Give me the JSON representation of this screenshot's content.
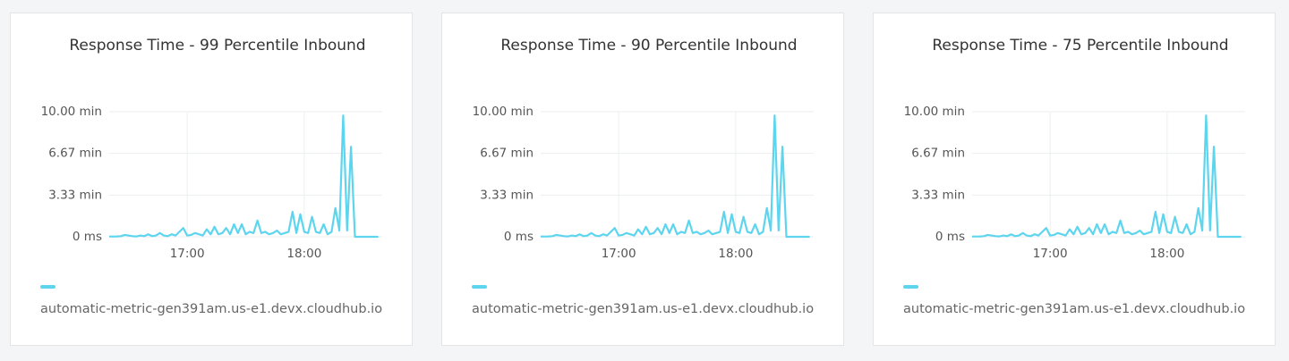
{
  "chart_data": [
    {
      "type": "line",
      "title": "Response Time - 99 Percentile Inbound",
      "x": [
        "16:20",
        "16:22",
        "16:24",
        "16:26",
        "16:28",
        "16:30",
        "16:32",
        "16:34",
        "16:36",
        "16:38",
        "16:40",
        "16:42",
        "16:44",
        "16:46",
        "16:48",
        "16:50",
        "16:52",
        "16:54",
        "16:56",
        "16:58",
        "17:00",
        "17:02",
        "17:04",
        "17:06",
        "17:08",
        "17:10",
        "17:12",
        "17:14",
        "17:16",
        "17:18",
        "17:20",
        "17:22",
        "17:24",
        "17:26",
        "17:28",
        "17:30",
        "17:32",
        "17:34",
        "17:36",
        "17:38",
        "17:40",
        "17:42",
        "17:44",
        "17:46",
        "17:48",
        "17:50",
        "17:52",
        "17:54",
        "17:56",
        "17:58",
        "18:00",
        "18:02",
        "18:04",
        "18:06",
        "18:08",
        "18:10",
        "18:12",
        "18:14",
        "18:16",
        "18:18",
        "18:20",
        "18:22",
        "18:24",
        "18:26",
        "18:28",
        "18:30",
        "18:32",
        "18:34",
        "18:36",
        "18:38"
      ],
      "series": [
        {
          "name": "automatic-metric-gen391am.us-e1.devx.cloudhub.io",
          "color": "#5dd5ee",
          "values": [
            0.02,
            0.02,
            0.03,
            0.05,
            0.15,
            0.1,
            0.05,
            0.03,
            0.1,
            0.05,
            0.2,
            0.05,
            0.1,
            0.3,
            0.1,
            0.05,
            0.2,
            0.1,
            0.4,
            0.7,
            0.1,
            0.15,
            0.3,
            0.2,
            0.1,
            0.6,
            0.2,
            0.8,
            0.2,
            0.3,
            0.7,
            0.2,
            1.0,
            0.3,
            1.0,
            0.2,
            0.4,
            0.3,
            1.3,
            0.3,
            0.4,
            0.2,
            0.3,
            0.5,
            0.2,
            0.3,
            0.4,
            2.0,
            0.3,
            1.8,
            0.4,
            0.3,
            1.6,
            0.4,
            0.3,
            1.0,
            0.2,
            0.4,
            2.3,
            0.5,
            9.7,
            0.5,
            7.2,
            0,
            0,
            0,
            0,
            0,
            0,
            0
          ]
        }
      ],
      "xlim": [
        "16:20",
        "18:40"
      ],
      "xticks": [
        "17:00",
        "18:00"
      ],
      "ylim": [
        0,
        10
      ],
      "yticks": [
        {
          "value": 0,
          "label": "0 ms"
        },
        {
          "value": 3.33,
          "label": "3.33 min"
        },
        {
          "value": 6.67,
          "label": "6.67 min"
        },
        {
          "value": 10,
          "label": "10.00 min"
        }
      ],
      "grid": true
    },
    {
      "type": "line",
      "title": "Response Time - 90 Percentile Inbound",
      "x": [
        "16:20",
        "16:22",
        "16:24",
        "16:26",
        "16:28",
        "16:30",
        "16:32",
        "16:34",
        "16:36",
        "16:38",
        "16:40",
        "16:42",
        "16:44",
        "16:46",
        "16:48",
        "16:50",
        "16:52",
        "16:54",
        "16:56",
        "16:58",
        "17:00",
        "17:02",
        "17:04",
        "17:06",
        "17:08",
        "17:10",
        "17:12",
        "17:14",
        "17:16",
        "17:18",
        "17:20",
        "17:22",
        "17:24",
        "17:26",
        "17:28",
        "17:30",
        "17:32",
        "17:34",
        "17:36",
        "17:38",
        "17:40",
        "17:42",
        "17:44",
        "17:46",
        "17:48",
        "17:50",
        "17:52",
        "17:54",
        "17:56",
        "17:58",
        "18:00",
        "18:02",
        "18:04",
        "18:06",
        "18:08",
        "18:10",
        "18:12",
        "18:14",
        "18:16",
        "18:18",
        "18:20",
        "18:22",
        "18:24",
        "18:26",
        "18:28",
        "18:30",
        "18:32",
        "18:34",
        "18:36",
        "18:38"
      ],
      "series": [
        {
          "name": "automatic-metric-gen391am.us-e1.devx.cloudhub.io",
          "color": "#5dd5ee",
          "values": [
            0.02,
            0.02,
            0.03,
            0.05,
            0.15,
            0.1,
            0.05,
            0.03,
            0.1,
            0.05,
            0.2,
            0.05,
            0.1,
            0.3,
            0.1,
            0.05,
            0.2,
            0.1,
            0.4,
            0.7,
            0.1,
            0.15,
            0.3,
            0.2,
            0.1,
            0.6,
            0.2,
            0.8,
            0.2,
            0.3,
            0.7,
            0.2,
            1.0,
            0.3,
            1.0,
            0.2,
            0.4,
            0.3,
            1.3,
            0.3,
            0.4,
            0.2,
            0.3,
            0.5,
            0.2,
            0.3,
            0.4,
            2.0,
            0.3,
            1.8,
            0.4,
            0.3,
            1.6,
            0.4,
            0.3,
            1.0,
            0.2,
            0.4,
            2.3,
            0.5,
            9.7,
            0.5,
            7.2,
            0,
            0,
            0,
            0,
            0,
            0,
            0
          ]
        }
      ],
      "xlim": [
        "16:20",
        "18:40"
      ],
      "xticks": [
        "17:00",
        "18:00"
      ],
      "ylim": [
        0,
        10
      ],
      "yticks": [
        {
          "value": 0,
          "label": "0 ms"
        },
        {
          "value": 3.33,
          "label": "3.33 min"
        },
        {
          "value": 6.67,
          "label": "6.67 min"
        },
        {
          "value": 10,
          "label": "10.00 min"
        }
      ],
      "grid": true
    },
    {
      "type": "line",
      "title": "Response Time - 75 Percentile Inbound",
      "x": [
        "16:20",
        "16:22",
        "16:24",
        "16:26",
        "16:28",
        "16:30",
        "16:32",
        "16:34",
        "16:36",
        "16:38",
        "16:40",
        "16:42",
        "16:44",
        "16:46",
        "16:48",
        "16:50",
        "16:52",
        "16:54",
        "16:56",
        "16:58",
        "17:00",
        "17:02",
        "17:04",
        "17:06",
        "17:08",
        "17:10",
        "17:12",
        "17:14",
        "17:16",
        "17:18",
        "17:20",
        "17:22",
        "17:24",
        "17:26",
        "17:28",
        "17:30",
        "17:32",
        "17:34",
        "17:36",
        "17:38",
        "17:40",
        "17:42",
        "17:44",
        "17:46",
        "17:48",
        "17:50",
        "17:52",
        "17:54",
        "17:56",
        "17:58",
        "18:00",
        "18:02",
        "18:04",
        "18:06",
        "18:08",
        "18:10",
        "18:12",
        "18:14",
        "18:16",
        "18:18",
        "18:20",
        "18:22",
        "18:24",
        "18:26",
        "18:28",
        "18:30",
        "18:32",
        "18:34",
        "18:36",
        "18:38"
      ],
      "series": [
        {
          "name": "automatic-metric-gen391am.us-e1.devx.cloudhub.io",
          "color": "#5dd5ee",
          "values": [
            0.02,
            0.02,
            0.03,
            0.05,
            0.15,
            0.1,
            0.05,
            0.03,
            0.1,
            0.05,
            0.2,
            0.05,
            0.1,
            0.3,
            0.1,
            0.05,
            0.2,
            0.1,
            0.4,
            0.7,
            0.1,
            0.15,
            0.3,
            0.2,
            0.1,
            0.6,
            0.2,
            0.8,
            0.2,
            0.3,
            0.7,
            0.2,
            1.0,
            0.3,
            1.0,
            0.2,
            0.4,
            0.3,
            1.3,
            0.3,
            0.4,
            0.2,
            0.3,
            0.5,
            0.2,
            0.3,
            0.4,
            2.0,
            0.3,
            1.8,
            0.4,
            0.3,
            1.6,
            0.4,
            0.3,
            1.0,
            0.2,
            0.4,
            2.3,
            0.5,
            9.7,
            0.5,
            7.2,
            0,
            0,
            0,
            0,
            0,
            0,
            0
          ]
        }
      ],
      "xlim": [
        "16:20",
        "18:40"
      ],
      "xticks": [
        "17:00",
        "18:00"
      ],
      "ylim": [
        0,
        10
      ],
      "yticks": [
        {
          "value": 0,
          "label": "0 ms"
        },
        {
          "value": 3.33,
          "label": "3.33 min"
        },
        {
          "value": 6.67,
          "label": "6.67 min"
        },
        {
          "value": 10,
          "label": "10.00 min"
        }
      ],
      "grid": true
    }
  ]
}
